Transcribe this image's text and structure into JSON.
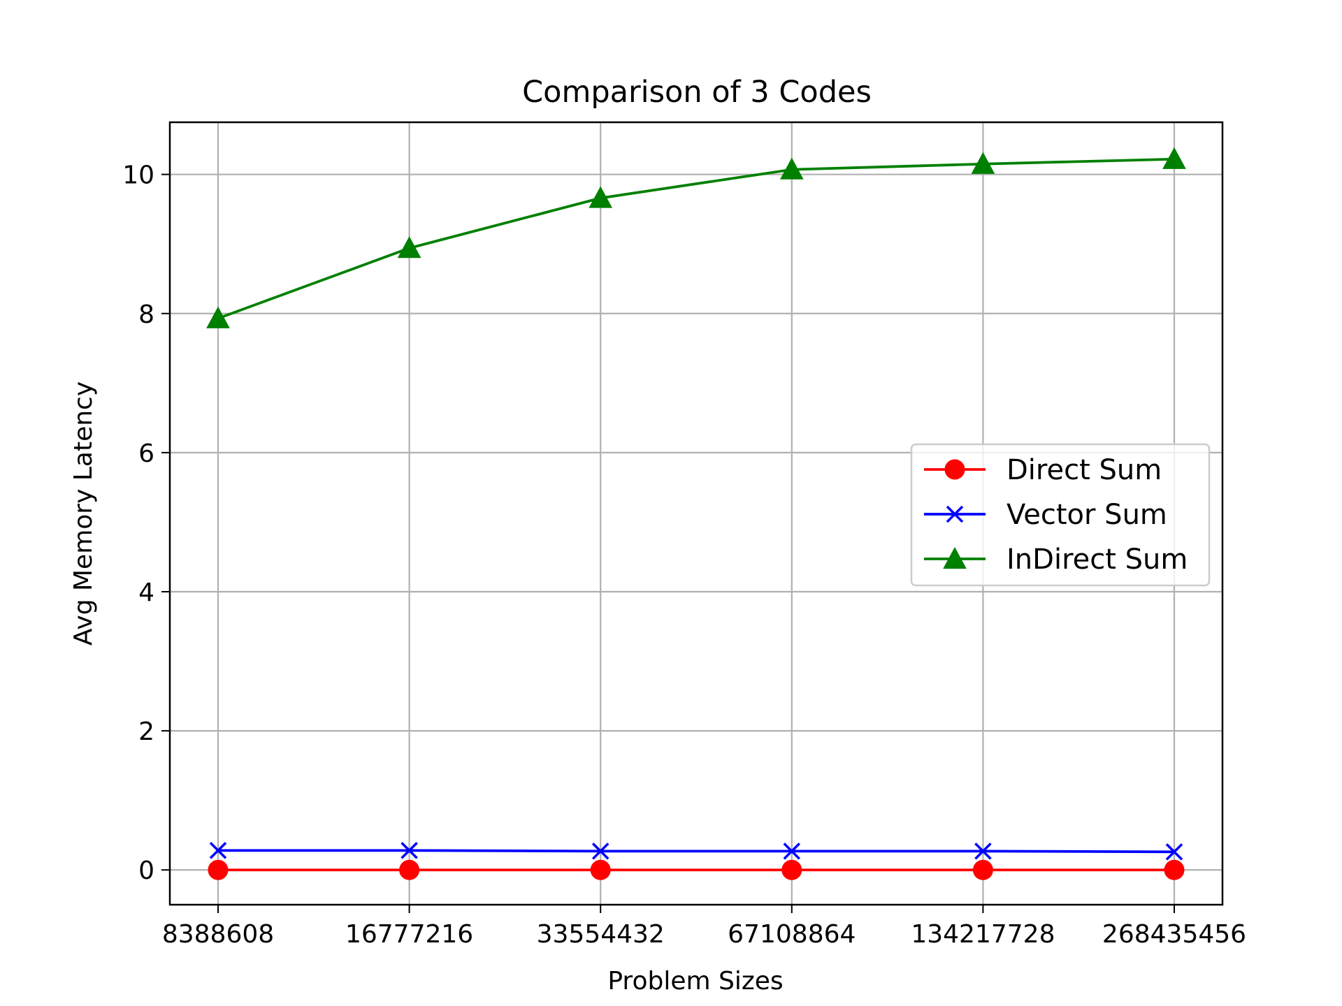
{
  "chart_data": {
    "type": "line",
    "title": "Comparison of 3 Codes",
    "xlabel": "Problem Sizes",
    "ylabel": "Avg Memory Latency",
    "categories": [
      "8388608",
      "16777216",
      "33554432",
      "67108864",
      "134217728",
      "268435456"
    ],
    "ylim": [
      -0.5,
      10.75
    ],
    "yticks": [
      0,
      2,
      4,
      6,
      8,
      10
    ],
    "grid": true,
    "legend_position": "center-right",
    "series": [
      {
        "name": "Direct Sum",
        "values": [
          0.0,
          0.0,
          0.0,
          0.0,
          0.0,
          0.0
        ],
        "color": "#ff0000",
        "marker": "circle"
      },
      {
        "name": "Vector Sum",
        "values": [
          0.28,
          0.28,
          0.27,
          0.27,
          0.27,
          0.26
        ],
        "color": "#0000ff",
        "marker": "x"
      },
      {
        "name": "InDirect Sum",
        "values": [
          7.93,
          8.94,
          9.66,
          10.07,
          10.15,
          10.22
        ],
        "color": "#008000",
        "marker": "triangle"
      }
    ]
  }
}
